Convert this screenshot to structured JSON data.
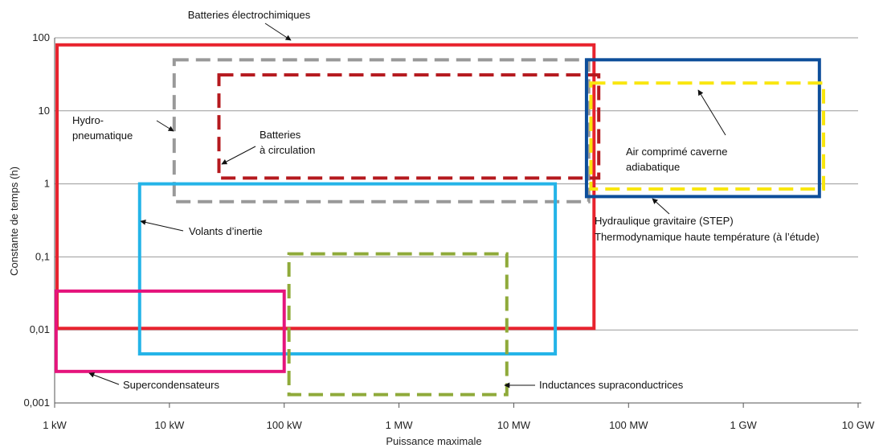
{
  "chart_data": {
    "type": "range-boxes",
    "xlabel": "Puissance maximale",
    "ylabel": "Constante de temps (h)",
    "x_scale": "log",
    "y_scale": "log",
    "xlim_kw": [
      1,
      10000000
    ],
    "ylim_h": [
      0.001,
      100
    ],
    "grid": "horizontal",
    "x_ticks": [
      {
        "value_kw": 1,
        "label": "1 kW"
      },
      {
        "value_kw": 10,
        "label": "10 kW"
      },
      {
        "value_kw": 100,
        "label": "100 kW"
      },
      {
        "value_kw": 1000,
        "label": "1 MW"
      },
      {
        "value_kw": 10000,
        "label": "10 MW"
      },
      {
        "value_kw": 100000,
        "label": "100 MW"
      },
      {
        "value_kw": 1000000,
        "label": "1 GW"
      },
      {
        "value_kw": 10000000,
        "label": "10 GW"
      }
    ],
    "y_ticks": [
      {
        "value_h": 0.001,
        "label": "0,001"
      },
      {
        "value_h": 0.01,
        "label": "0,01"
      },
      {
        "value_h": 0.1,
        "label": "0,1"
      },
      {
        "value_h": 1,
        "label": "1"
      },
      {
        "value_h": 10,
        "label": "10"
      },
      {
        "value_h": 100,
        "label": "100"
      }
    ],
    "boxes": [
      {
        "id": "batteries-electrochimiques",
        "power_kw": [
          1.05,
          50000
        ],
        "duration_h": [
          0.0105,
          80
        ],
        "color": "#e8232e",
        "dashed": false
      },
      {
        "id": "hydro-pneumatique",
        "power_kw": [
          11,
          45000
        ],
        "duration_h": [
          0.57,
          50
        ],
        "color": "#999999",
        "dashed": true
      },
      {
        "id": "batteries-circulation",
        "power_kw": [
          27,
          55000
        ],
        "duration_h": [
          1.2,
          31
        ],
        "color": "#b5191e",
        "dashed": true
      },
      {
        "id": "air-comprime",
        "power_kw": [
          43000,
          4600000
        ],
        "duration_h": [
          0.67,
          50
        ],
        "color": "#0d4e9a",
        "dashed": false
      },
      {
        "id": "hydraulique-gravitaire",
        "power_kw": [
          47000,
          5000000
        ],
        "duration_h": [
          0.85,
          24
        ],
        "color": "#f9e60e",
        "dashed": true
      },
      {
        "id": "volants-inertie",
        "power_kw": [
          5.5,
          23000
        ],
        "duration_h": [
          0.0047,
          1
        ],
        "color": "#24b4e8",
        "dashed": false
      },
      {
        "id": "supercondensateurs",
        "power_kw": [
          1.03,
          100
        ],
        "duration_h": [
          0.0027,
          0.034
        ],
        "color": "#e5147c",
        "dashed": false
      },
      {
        "id": "inductances-supraconductrices",
        "power_kw": [
          110,
          8700
        ],
        "duration_h": [
          0.0013,
          0.11
        ],
        "color": "#8faa3a",
        "dashed": true
      }
    ],
    "annotations": {
      "batteries_electrochimiques": "Batteries électrochimiques",
      "hydro_line1": "Hydro-",
      "hydro_line2": "pneumatique",
      "circulation_line1": "Batteries",
      "circulation_line2": "à circulation",
      "air_line1": "Air comprimé caverne",
      "air_line2": "adiabatique",
      "step_line1": "Hydraulique gravitaire (STEP)",
      "step_line2": "Thermodynamique haute température (à l’étude)",
      "volants": "Volants d’inertie",
      "supercondensateurs": "Supercondensateurs",
      "inductances": "Inductances supraconductrices"
    }
  }
}
